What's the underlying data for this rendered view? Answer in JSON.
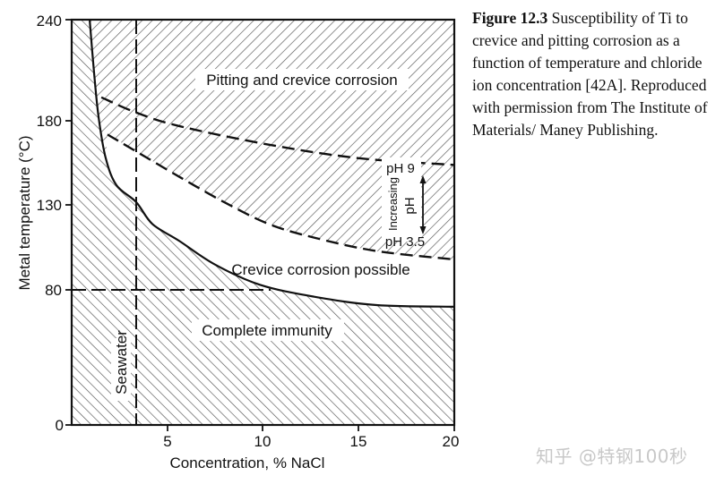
{
  "caption": {
    "figure_label": "Figure 12.3",
    "text": "Susceptibility of Ti to crevice and pitting corrosion as a function of temperature and chloride ion concentration [42A]. Reproduced with permission from The Institute of Materials/ Maney Publishing."
  },
  "watermark": "知乎 @特钢100秒",
  "chart_data": {
    "type": "area",
    "title": "Susceptibility of Ti to crevice and pitting corrosion",
    "xlabel": "Concentration, % NaCl",
    "ylabel": "Metal temperature (°C)",
    "xlim": [
      0,
      20
    ],
    "ylim": [
      0,
      240
    ],
    "x_ticks": [
      5,
      10,
      15,
      20
    ],
    "y_ticks": [
      0,
      80,
      130,
      180,
      240
    ],
    "grid": false,
    "legend": null,
    "series": [
      {
        "name": "Immunity boundary (solid)",
        "style": "solid",
        "x": [
          0.94,
          1.17,
          1.41,
          1.78,
          2.34,
          3.37,
          4.22,
          5.62,
          7.49,
          9.84,
          12.65,
          15.93,
          20
        ],
        "y": [
          240,
          208.6,
          182,
          158,
          142,
          132,
          119,
          109,
          95,
          83,
          76,
          71,
          70
        ]
      },
      {
        "name": "Pitting boundary at pH 9 (dashed)",
        "style": "dashed",
        "x": [
          1.55,
          3.37,
          5.62,
          10.3,
          14.99,
          20
        ],
        "y": [
          194,
          185,
          177,
          166,
          158,
          154
        ]
      },
      {
        "name": "Pitting boundary at pH 3.5 (dashed)",
        "style": "dashed",
        "x": [
          1.87,
          3.37,
          5.62,
          7.96,
          10.3,
          12.65,
          15.93,
          20
        ],
        "y": [
          172,
          162,
          147,
          132,
          119,
          111,
          103,
          98
        ]
      }
    ],
    "reference_lines": [
      {
        "name": "Seawater",
        "orientation": "vertical",
        "x": 3.37,
        "style": "dashed"
      },
      {
        "name": "80 °C",
        "orientation": "horizontal",
        "y": 80,
        "style": "dashed"
      }
    ],
    "regions": [
      {
        "label": "Pitting and crevice corrosion",
        "hatch": "backslash"
      },
      {
        "label": "Crevice corrosion possible",
        "hatch": "none"
      },
      {
        "label": "Complete immunity",
        "hatch": "slash"
      }
    ],
    "annotations": [
      {
        "text": "pH 9"
      },
      {
        "text": "pH 3.5"
      },
      {
        "text": "Increasing"
      },
      {
        "text": "pH"
      },
      {
        "text": "Seawater"
      }
    ]
  },
  "labels": {
    "region_pitting": "Pitting and crevice corrosion",
    "region_crevice": "Crevice corrosion possible",
    "region_immunity": "Complete immunity",
    "ph_high": "pH 9",
    "ph_low": "pH 3.5",
    "increasing": "Increasing",
    "ph": "pH",
    "seawater": "Seawater",
    "xlabel": "Concentration, % NaCl",
    "ylabel": "Metal temperature (°C)",
    "xtick_5": "5",
    "xtick_10": "10",
    "xtick_15": "15",
    "xtick_20": "20",
    "ytick_0": "0",
    "ytick_80": "80",
    "ytick_130": "130",
    "ytick_180": "180",
    "ytick_240": "240"
  }
}
